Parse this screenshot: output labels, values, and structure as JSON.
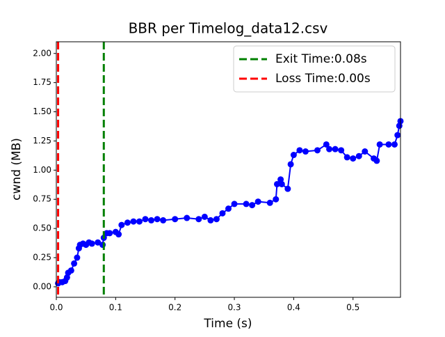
{
  "chart_data": {
    "type": "line",
    "title": "BBR per Timelog_data12.csv",
    "x_label": "Time (s)",
    "y_label": "cwnd (MB)",
    "xlim": [
      0,
      0.58
    ],
    "ylim": [
      -0.09,
      2.1
    ],
    "xticks": [
      {
        "value": 0,
        "label": "0.0"
      },
      {
        "value": 0.1,
        "label": "0.1"
      },
      {
        "value": 0.2,
        "label": "0.2"
      },
      {
        "value": 0.3,
        "label": "0.3"
      },
      {
        "value": 0.4,
        "label": "0.4"
      },
      {
        "value": 0.5,
        "label": "0.5"
      }
    ],
    "yticks": [
      {
        "value": 0,
        "label": "0.00"
      },
      {
        "value": 0.25,
        "label": "0.25"
      },
      {
        "value": 0.5,
        "label": "0.50"
      },
      {
        "value": 0.75,
        "label": "0.75"
      },
      {
        "value": 1,
        "label": "1.00"
      },
      {
        "value": 1.25,
        "label": "1.25"
      },
      {
        "value": 1.5,
        "label": "1.50"
      },
      {
        "value": 1.75,
        "label": "1.75"
      },
      {
        "value": 2,
        "label": "2.00"
      }
    ],
    "legend_position": "upper right",
    "series": [
      {
        "color": "#0000ff",
        "x": [
          0.003,
          0.005,
          0.01,
          0.015,
          0.018,
          0.02,
          0.025,
          0.03,
          0.035,
          0.038,
          0.04,
          0.045,
          0.05,
          0.055,
          0.06,
          0.07,
          0.078,
          0.08,
          0.085,
          0.09,
          0.1,
          0.105,
          0.11,
          0.12,
          0.13,
          0.14,
          0.15,
          0.16,
          0.17,
          0.18,
          0.2,
          0.22,
          0.24,
          0.25,
          0.26,
          0.27,
          0.28,
          0.29,
          0.3,
          0.32,
          0.33,
          0.34,
          0.36,
          0.37,
          0.372,
          0.378,
          0.38,
          0.39,
          0.395,
          0.4,
          0.41,
          0.42,
          0.44,
          0.455,
          0.46,
          0.47,
          0.48,
          0.49,
          0.5,
          0.51,
          0.52,
          0.535,
          0.54,
          0.545,
          0.56,
          0.57,
          0.575,
          0.578,
          0.58
        ],
        "values": [
          0.03,
          0.04,
          0.04,
          0.05,
          0.08,
          0.12,
          0.14,
          0.2,
          0.25,
          0.33,
          0.36,
          0.37,
          0.36,
          0.38,
          0.37,
          0.38,
          0.36,
          0.42,
          0.46,
          0.46,
          0.47,
          0.45,
          0.53,
          0.55,
          0.56,
          0.56,
          0.58,
          0.57,
          0.58,
          0.57,
          0.58,
          0.59,
          0.58,
          0.6,
          0.57,
          0.58,
          0.63,
          0.67,
          0.71,
          0.71,
          0.7,
          0.73,
          0.72,
          0.75,
          0.88,
          0.92,
          0.88,
          0.84,
          1.05,
          1.13,
          1.17,
          1.16,
          1.17,
          1.22,
          1.18,
          1.18,
          1.17,
          1.11,
          1.1,
          1.12,
          1.16,
          1.1,
          1.08,
          1.22,
          1.22,
          1.22,
          1.3,
          1.38,
          1.42
        ]
      }
    ],
    "vlines": [
      {
        "name": "Exit Time:0.08s",
        "x": 0.08,
        "color": "#008000"
      },
      {
        "name": "Loss Time:0.00s",
        "x": 0.003,
        "color": "#ff0000"
      }
    ]
  }
}
